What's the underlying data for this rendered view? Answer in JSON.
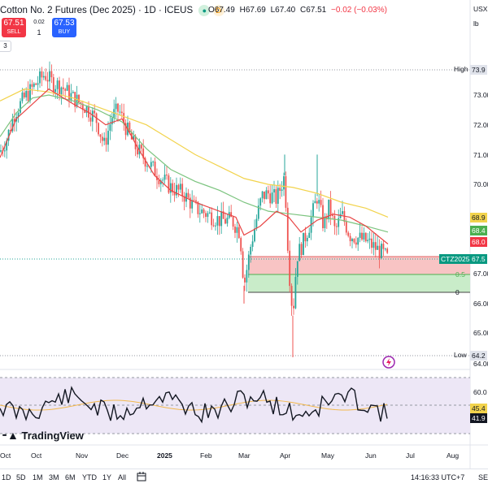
{
  "header": {
    "title": "Cotton No. 2 Futures (Dec 2025) · 1D · ICEUS",
    "status_green": "●",
    "status_d": "D",
    "ohlc": [
      "O67.49",
      "H67.69",
      "L67.40",
      "C67.51",
      "−0.02 (−0.03%)"
    ],
    "sell_price": "67.51",
    "sell_label": "SELL",
    "buy_price": "67.53",
    "buy_label": "BUY",
    "spread": "0.02",
    "quantity": "1",
    "indicator_count": "3",
    "currency": "USX",
    "unit": "lb"
  },
  "y_axis": {
    "ticks": [
      "73.00",
      "72.00",
      "71.00",
      "70.00",
      "67.00",
      "66.00",
      "65.00",
      "64.00"
    ],
    "high_label": "High",
    "high_value": "73.9",
    "low_label": "Low",
    "low_value": "64.2",
    "ma1_value": "68.9",
    "ma2_value": "68.4",
    "ma3_value": "68.0",
    "symbol_tag": "CTZ2025",
    "last_value": "67.5",
    "fib_half": "0.5",
    "fib_zero": "0"
  },
  "rsi_axis": {
    "tick": "60.0",
    "ma_value": "45.4",
    "rsi_value": "41.9"
  },
  "x_axis": [
    "Oct",
    "Nov",
    "Dec",
    "2025",
    "Feb",
    "Mar",
    "Apr",
    "May",
    "Jun",
    "Jul",
    "Aug"
  ],
  "logo_text": "TradingView",
  "bottom_bar": {
    "timeframes": [
      "1D",
      "5D",
      "1M",
      "3M",
      "6M",
      "YTD",
      "1Y",
      "All"
    ],
    "clock": "14:16:33 UTC+7",
    "session": "SE"
  },
  "colors": {
    "up": "#26a69a",
    "down": "#ef5350",
    "ma_yellow": "#f2d34c",
    "ma_green": "#7cc47f",
    "ma_red": "#e84545",
    "rsi_fill": "#ede7f6"
  }
}
